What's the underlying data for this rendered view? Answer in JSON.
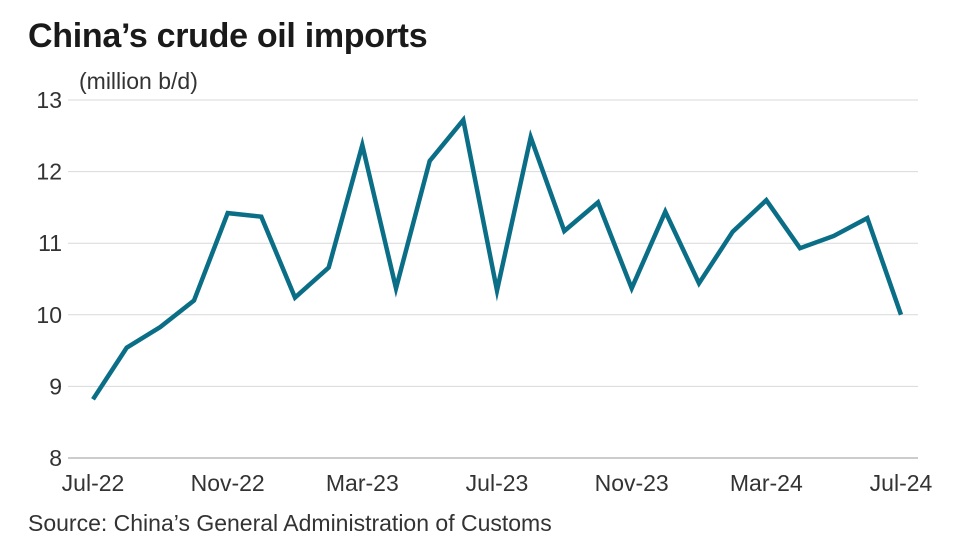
{
  "title": "China’s crude oil imports",
  "unit_label": "(million b/d)",
  "source": "Source: China’s General Administration of Customs",
  "colors": {
    "line": "#0b6e87",
    "grid": "#d9d9d9",
    "text": "#333333"
  },
  "chart_data": {
    "type": "line",
    "title": "China’s crude oil imports",
    "ylabel": "(million b/d)",
    "xlabel": "",
    "ylim": [
      8,
      13
    ],
    "yticks": [
      8,
      9,
      10,
      11,
      12,
      13
    ],
    "grid": true,
    "x": [
      "Jul-22",
      "Aug-22",
      "Sep-22",
      "Oct-22",
      "Nov-22",
      "Dec-22",
      "Jan-23",
      "Feb-23",
      "Mar-23",
      "Apr-23",
      "May-23",
      "Jun-23",
      "Jul-23",
      "Aug-23",
      "Sep-23",
      "Oct-23",
      "Nov-23",
      "Dec-23",
      "Jan-24",
      "Feb-24",
      "Mar-24",
      "Apr-24",
      "May-24",
      "Jun-24",
      "Jul-24"
    ],
    "xtick_labels": [
      "Jul-22",
      "Nov-22",
      "Mar-23",
      "Jul-23",
      "Nov-23",
      "Mar-24",
      "Jul-24"
    ],
    "series": [
      {
        "name": "Crude oil imports",
        "values": [
          8.82,
          9.54,
          9.83,
          10.2,
          11.42,
          11.37,
          10.24,
          10.66,
          12.37,
          10.37,
          12.15,
          12.72,
          10.34,
          12.48,
          11.17,
          11.57,
          10.37,
          11.44,
          10.44,
          11.16,
          11.6,
          10.93,
          11.1,
          11.35,
          10.0
        ]
      }
    ]
  }
}
